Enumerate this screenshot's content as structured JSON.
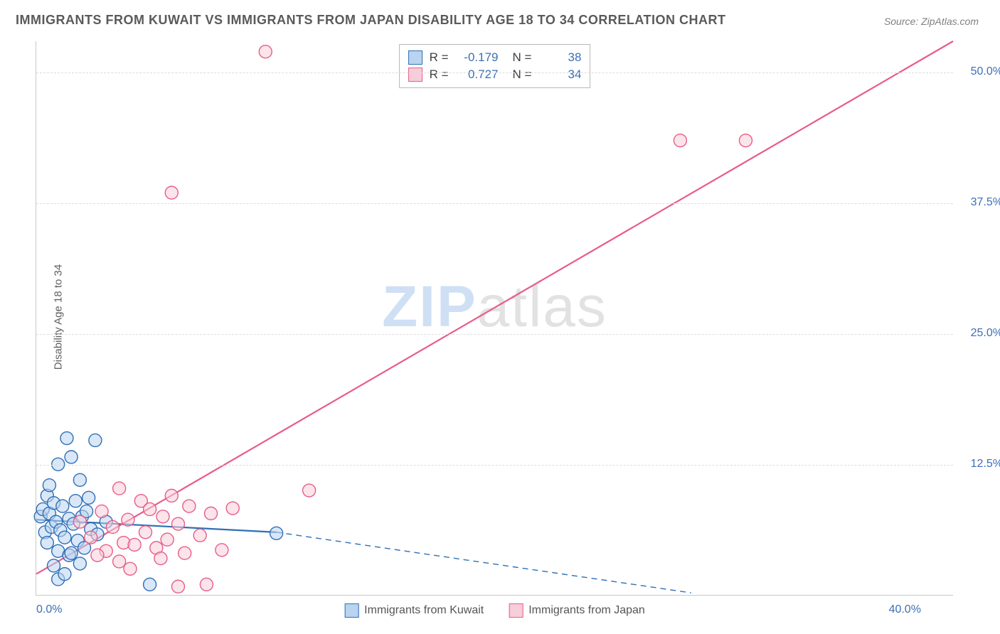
{
  "title": "IMMIGRANTS FROM KUWAIT VS IMMIGRANTS FROM JAPAN DISABILITY AGE 18 TO 34 CORRELATION CHART",
  "source": "Source: ZipAtlas.com",
  "ylabel": "Disability Age 18 to 34",
  "watermark_a": "ZIP",
  "watermark_b": "atlas",
  "chart": {
    "type": "scatter",
    "background_color": "#ffffff",
    "grid_color": "#dcdcdc",
    "border_color": "#c8c8c8",
    "label_color": "#3b6fb6",
    "text_color": "#5a5a5a",
    "xlim": [
      0,
      42
    ],
    "ylim": [
      0,
      53
    ],
    "x_ticks": [
      {
        "v": 0,
        "label": "0.0%"
      },
      {
        "v": 40,
        "label": "40.0%"
      }
    ],
    "y_ticks": [
      {
        "v": 12.5,
        "label": "12.5%"
      },
      {
        "v": 25.0,
        "label": "25.0%"
      },
      {
        "v": 37.5,
        "label": "37.5%"
      },
      {
        "v": 50.0,
        "label": "50.0%"
      }
    ],
    "marker_radius": 9,
    "marker_stroke_width": 1.4,
    "line_width": 2.2,
    "dash_pattern": "8 6",
    "series": [
      {
        "name": "Immigrants from Kuwait",
        "fill": "#b9d3f0",
        "stroke": "#2f6fb6",
        "R": "-0.179",
        "N": "38",
        "trend_solid": {
          "x1": 0,
          "y1": 7.2,
          "x2": 11,
          "y2": 6.0
        },
        "trend_dash": {
          "x1": 11,
          "y1": 6.0,
          "x2": 30,
          "y2": 0.2
        },
        "points": [
          [
            0.2,
            7.5
          ],
          [
            0.3,
            8.2
          ],
          [
            0.4,
            6.0
          ],
          [
            0.5,
            9.5
          ],
          [
            0.5,
            5.0
          ],
          [
            0.6,
            7.8
          ],
          [
            0.7,
            6.5
          ],
          [
            0.8,
            8.8
          ],
          [
            0.9,
            7.0
          ],
          [
            1.0,
            12.5
          ],
          [
            1.0,
            4.2
          ],
          [
            1.1,
            6.2
          ],
          [
            1.2,
            8.5
          ],
          [
            1.3,
            5.5
          ],
          [
            1.4,
            15.0
          ],
          [
            1.5,
            7.3
          ],
          [
            1.5,
            3.8
          ],
          [
            1.6,
            13.2
          ],
          [
            1.7,
            6.8
          ],
          [
            1.8,
            9.0
          ],
          [
            1.9,
            5.2
          ],
          [
            2.0,
            11.0
          ],
          [
            2.1,
            7.5
          ],
          [
            2.2,
            4.5
          ],
          [
            2.3,
            8.0
          ],
          [
            2.5,
            6.3
          ],
          [
            2.7,
            14.8
          ],
          [
            2.8,
            5.8
          ],
          [
            3.2,
            7.0
          ],
          [
            1.0,
            1.5
          ],
          [
            1.3,
            2.0
          ],
          [
            0.8,
            2.8
          ],
          [
            2.0,
            3.0
          ],
          [
            1.6,
            4.0
          ],
          [
            5.2,
            1.0
          ],
          [
            11.0,
            5.9
          ],
          [
            2.4,
            9.3
          ],
          [
            0.6,
            10.5
          ]
        ]
      },
      {
        "name": "Immigrants from Japan",
        "fill": "#f7cdd9",
        "stroke": "#e85c8a",
        "R": "0.727",
        "N": "34",
        "trend_solid": {
          "x1": 0,
          "y1": 2.0,
          "x2": 42,
          "y2": 53.0
        },
        "trend_dash": null,
        "points": [
          [
            2.0,
            7.0
          ],
          [
            2.5,
            5.5
          ],
          [
            3.0,
            8.0
          ],
          [
            3.2,
            4.2
          ],
          [
            3.5,
            6.5
          ],
          [
            3.8,
            10.2
          ],
          [
            4.0,
            5.0
          ],
          [
            4.2,
            7.2
          ],
          [
            4.5,
            4.8
          ],
          [
            4.8,
            9.0
          ],
          [
            5.0,
            6.0
          ],
          [
            5.2,
            8.2
          ],
          [
            5.5,
            4.5
          ],
          [
            5.8,
            7.5
          ],
          [
            6.0,
            5.3
          ],
          [
            6.2,
            9.5
          ],
          [
            6.5,
            6.8
          ],
          [
            6.8,
            4.0
          ],
          [
            7.0,
            8.5
          ],
          [
            7.5,
            5.7
          ],
          [
            8.0,
            7.8
          ],
          [
            8.5,
            4.3
          ],
          [
            9.0,
            8.3
          ],
          [
            10.5,
            52.0
          ],
          [
            6.2,
            38.5
          ],
          [
            12.5,
            10.0
          ],
          [
            6.5,
            0.8
          ],
          [
            7.8,
            1.0
          ],
          [
            29.5,
            43.5
          ],
          [
            32.5,
            43.5
          ],
          [
            3.8,
            3.2
          ],
          [
            4.3,
            2.5
          ],
          [
            5.7,
            3.5
          ],
          [
            2.8,
            3.8
          ]
        ]
      }
    ],
    "stat_legend_labels": {
      "R": "R =",
      "N": "N ="
    },
    "stat_legend_border": "#b8b8b8",
    "title_fontsize": 18,
    "label_fontsize": 15,
    "tick_fontsize": 16,
    "watermark_fontsize": 82
  }
}
